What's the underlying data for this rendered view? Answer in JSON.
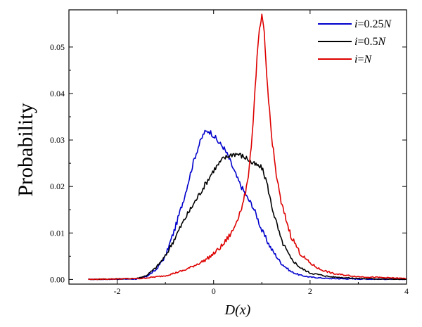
{
  "chart_data": {
    "type": "line",
    "title": "",
    "xlabel": "D(x)",
    "ylabel": "Probability",
    "xlim": [
      -3,
      4
    ],
    "ylim": [
      -0.001,
      0.058
    ],
    "x_ticks": [
      -2,
      0,
      2,
      4
    ],
    "x_tick_labels": [
      "-2",
      "0",
      "2",
      "4"
    ],
    "y_ticks": [
      0.0,
      0.01,
      0.02,
      0.03,
      0.04,
      0.05
    ],
    "y_tick_labels": [
      "0.00",
      "0.01",
      "0.02",
      "0.03",
      "0.04",
      "0.05"
    ],
    "legend_position": "top-right",
    "series": [
      {
        "name": "i=0.25N",
        "legend_parts": [
          "i",
          "=0.25",
          "N"
        ],
        "color": "#0000cc",
        "x": [
          -2.6,
          -1.6,
          -1.4,
          -1.2,
          -1.0,
          -0.8,
          -0.6,
          -0.5,
          -0.4,
          -0.3,
          -0.2,
          -0.1,
          0.0,
          0.1,
          0.2,
          0.3,
          0.4,
          0.5,
          0.6,
          0.7,
          0.8,
          0.9,
          1.0,
          1.2,
          1.4,
          1.6,
          1.8,
          2.0,
          2.4,
          3.0,
          4.0
        ],
        "y": [
          0.0,
          0.0001,
          0.0006,
          0.002,
          0.005,
          0.011,
          0.018,
          0.022,
          0.026,
          0.029,
          0.0315,
          0.032,
          0.031,
          0.0295,
          0.0285,
          0.0265,
          0.024,
          0.0215,
          0.0195,
          0.0175,
          0.016,
          0.0135,
          0.0105,
          0.0065,
          0.0035,
          0.0017,
          0.0009,
          0.0005,
          0.0002,
          0.0001,
          0.0
        ]
      },
      {
        "name": "i=0.5N",
        "legend_parts": [
          "i",
          "=0.5",
          "N"
        ],
        "color": "#000000",
        "x": [
          -2.6,
          -1.6,
          -1.4,
          -1.2,
          -1.0,
          -0.8,
          -0.6,
          -0.4,
          -0.2,
          0.0,
          0.2,
          0.4,
          0.5,
          0.6,
          0.7,
          0.8,
          0.9,
          1.0,
          1.1,
          1.2,
          1.4,
          1.6,
          1.8,
          2.0,
          2.4,
          3.0,
          4.0
        ],
        "y": [
          0.0,
          0.0002,
          0.0008,
          0.0025,
          0.005,
          0.009,
          0.013,
          0.0165,
          0.02,
          0.0235,
          0.026,
          0.027,
          0.027,
          0.0265,
          0.026,
          0.025,
          0.0245,
          0.024,
          0.021,
          0.016,
          0.0085,
          0.0045,
          0.0025,
          0.0014,
          0.0006,
          0.0002,
          0.0
        ]
      },
      {
        "name": "i=N",
        "legend_parts": [
          "i",
          "=",
          "N"
        ],
        "color": "#dd0000",
        "x": [
          -2.6,
          -1.5,
          -1.0,
          -0.6,
          -0.2,
          0.0,
          0.2,
          0.4,
          0.6,
          0.7,
          0.8,
          0.9,
          0.95,
          1.0,
          1.05,
          1.1,
          1.2,
          1.3,
          1.4,
          1.6,
          1.8,
          2.0,
          2.2,
          2.5,
          3.0,
          4.0
        ],
        "y": [
          0.0,
          0.0002,
          0.0008,
          0.002,
          0.004,
          0.0055,
          0.0075,
          0.0105,
          0.016,
          0.0205,
          0.031,
          0.0475,
          0.0535,
          0.0565,
          0.053,
          0.044,
          0.031,
          0.0225,
          0.0165,
          0.0095,
          0.0055,
          0.0035,
          0.0022,
          0.0012,
          0.0006,
          0.0002
        ]
      }
    ]
  }
}
